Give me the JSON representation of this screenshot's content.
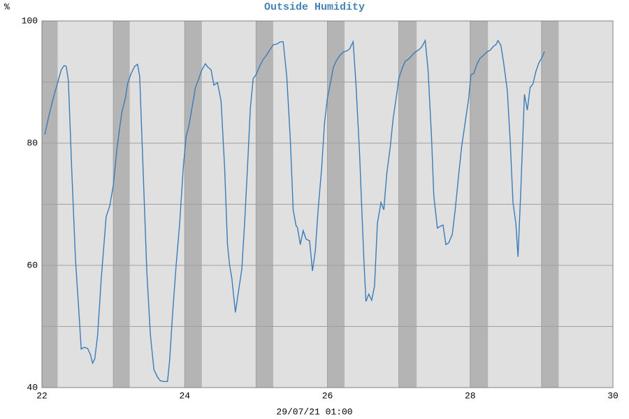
{
  "chart_data": {
    "type": "line",
    "title": "Outside Humidity",
    "ylabel": "%",
    "xlabel": "29/07/21 01:00",
    "xlim": [
      22,
      30
    ],
    "xticks": [
      22,
      24,
      26,
      28,
      30
    ],
    "minor_xticks": [
      23,
      25,
      27,
      29
    ],
    "ylim": [
      40,
      100
    ],
    "yticks": [
      40,
      60,
      80,
      100
    ],
    "minor_yticks": [
      50,
      70,
      90
    ],
    "grid": true,
    "color": "#3a7cb8",
    "shaded_bands": [
      [
        22,
        22.22
      ],
      [
        23,
        23.23
      ],
      [
        24,
        24.24
      ],
      [
        25,
        25.24
      ],
      [
        26,
        26.24
      ],
      [
        27,
        27.25
      ],
      [
        28,
        28.25
      ],
      [
        29,
        29.24
      ]
    ],
    "x": [
      22.04,
      22.1,
      22.16,
      22.22,
      22.27,
      22.31,
      22.34,
      22.37,
      22.42,
      22.47,
      22.52,
      22.55,
      22.59,
      22.64,
      22.68,
      22.71,
      22.74,
      22.78,
      22.83,
      22.9,
      22.95,
      23.0,
      23.05,
      23.08,
      23.12,
      23.17,
      23.2,
      23.25,
      23.3,
      23.34,
      23.37,
      23.42,
      23.47,
      23.52,
      23.57,
      23.62,
      23.66,
      23.71,
      23.76,
      23.79,
      23.83,
      23.88,
      23.93,
      23.98,
      24.02,
      24.06,
      24.11,
      24.15,
      24.19,
      24.24,
      24.29,
      24.32,
      24.37,
      24.41,
      24.46,
      24.51,
      24.56,
      24.6,
      24.63,
      24.66,
      24.71,
      24.75,
      24.8,
      24.84,
      24.88,
      24.92,
      24.96,
      25.0,
      25.05,
      25.1,
      25.14,
      25.19,
      25.24,
      25.29,
      25.34,
      25.38,
      25.43,
      25.48,
      25.52,
      25.56,
      25.58,
      25.62,
      25.66,
      25.7,
      25.75,
      25.79,
      25.83,
      25.87,
      25.92,
      25.96,
      26.0,
      26.05,
      26.08,
      26.12,
      26.17,
      26.22,
      26.27,
      26.31,
      26.36,
      26.4,
      26.45,
      26.49,
      26.51,
      26.54,
      26.58,
      26.62,
      26.66,
      26.7,
      26.75,
      26.79,
      26.83,
      26.88,
      26.92,
      26.97,
      27.0,
      27.05,
      27.09,
      27.14,
      27.18,
      27.23,
      27.27,
      27.32,
      27.37,
      27.41,
      27.46,
      27.49,
      27.54,
      27.58,
      27.62,
      27.66,
      27.7,
      27.75,
      27.79,
      27.84,
      27.88,
      27.93,
      27.98,
      28.01,
      28.05,
      28.1,
      28.14,
      28.18,
      28.24,
      28.28,
      28.33,
      28.36,
      28.39,
      28.43,
      28.47,
      28.52,
      28.56,
      28.6,
      28.64,
      28.67,
      28.71,
      28.76,
      28.8,
      28.84,
      28.88,
      28.92,
      28.96,
      29.01,
      29.04
    ],
    "values": [
      81.4,
      84.6,
      87.4,
      89.9,
      92,
      92.7,
      92.6,
      90.3,
      74.9,
      61,
      52,
      46.3,
      46.6,
      46.4,
      45.4,
      44,
      44.7,
      48.6,
      57.7,
      68,
      69.7,
      73.1,
      78.9,
      81.7,
      85.1,
      87.4,
      89.7,
      91.4,
      92.6,
      92.9,
      90.9,
      74.9,
      58.9,
      48.6,
      42.9,
      41.7,
      41.1,
      41,
      41,
      44.6,
      52,
      60,
      66.9,
      76,
      81.1,
      82.9,
      86.3,
      89.1,
      90.3,
      92,
      93,
      92.5,
      92,
      89.5,
      89.9,
      86.9,
      76,
      63.4,
      60,
      57.9,
      52.3,
      55.4,
      59.4,
      66.9,
      76,
      85.7,
      90.6,
      91.2,
      92.6,
      93.7,
      94.3,
      95.2,
      96.1,
      96.2,
      96.6,
      96.6,
      90.9,
      80.6,
      69.1,
      66.5,
      66.2,
      63.4,
      65.7,
      64.3,
      64,
      59.1,
      62.3,
      69.1,
      76,
      83.4,
      87.4,
      90.3,
      92.3,
      93.4,
      94.3,
      94.9,
      95.1,
      95.4,
      96.6,
      89.7,
      78.3,
      66.9,
      61.1,
      54.1,
      55.3,
      54.3,
      56.6,
      66.9,
      70.3,
      69.1,
      74.9,
      79.4,
      84,
      88,
      90.6,
      92.3,
      93.4,
      93.8,
      94.3,
      94.9,
      95.2,
      95.7,
      96.8,
      92,
      80.6,
      71.4,
      66.1,
      66.4,
      66.6,
      63.4,
      63.7,
      65.1,
      69.1,
      74.9,
      79.4,
      83.4,
      87.4,
      91.2,
      91.4,
      93.1,
      93.9,
      94.3,
      95,
      95.2,
      95.9,
      96.1,
      96.8,
      96,
      93.1,
      88.6,
      80.6,
      70.3,
      66.9,
      61.4,
      72.6,
      88,
      85.4,
      89.1,
      89.7,
      91.7,
      93.1,
      94.1,
      95
    ]
  }
}
